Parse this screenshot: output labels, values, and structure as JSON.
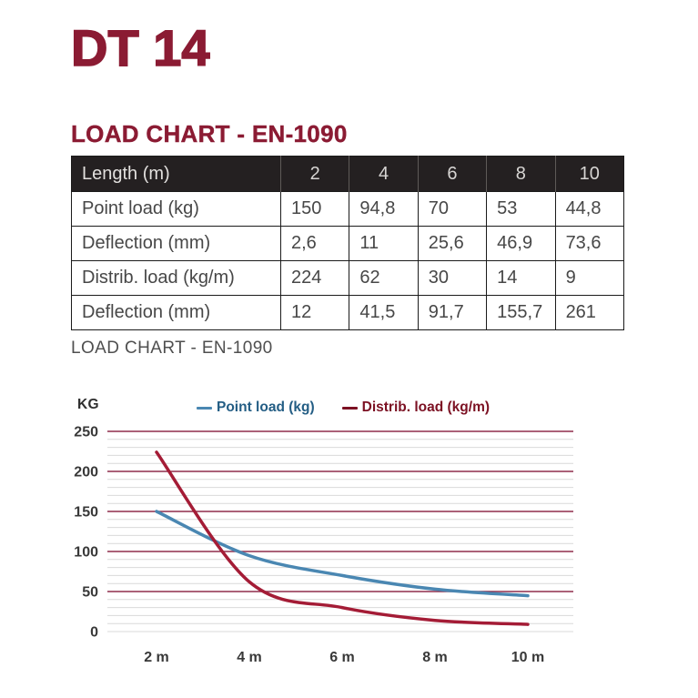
{
  "page": {
    "product_title": "DT 14",
    "section_heading": "LOAD CHART - EN-1090",
    "chart_caption": "LOAD CHART - EN-1090"
  },
  "table": {
    "header": {
      "label": "Length (m)",
      "cols": [
        "2",
        "4",
        "6",
        "8",
        "10"
      ]
    },
    "rows": [
      {
        "label": "Point load (kg)",
        "values": [
          "150",
          "94,8",
          "70",
          "53",
          "44,8"
        ]
      },
      {
        "label": "Deflection (mm)",
        "values": [
          "2,6",
          "11",
          "25,6",
          "46,9",
          "73,6"
        ]
      },
      {
        "label": "Distrib. load (kg/m)",
        "values": [
          "224",
          "62",
          "30",
          "14",
          "9"
        ]
      },
      {
        "label": "Deflection (mm)",
        "values": [
          "12",
          "41,5",
          "91,7",
          "155,7",
          "261"
        ]
      }
    ]
  },
  "chart_data": {
    "type": "line",
    "title": "",
    "ylabel": "KG",
    "xlabel": "",
    "categories": [
      "2 m",
      "4 m",
      "6 m",
      "8 m",
      "10 m"
    ],
    "x_values_m": [
      2,
      4,
      6,
      8,
      10
    ],
    "series": [
      {
        "name": "Point load (kg)",
        "values": [
          150,
          94.8,
          70,
          53,
          44.8
        ],
        "color": "#4a87b2",
        "label_color": "#235d84",
        "dash_color": "#4a87b2"
      },
      {
        "name": "Distrib. load (kg/m)",
        "values": [
          224,
          62,
          30,
          14,
          9
        ],
        "color": "#a41c36",
        "label_color": "#7c1123",
        "dash_color": "#7c1123"
      }
    ],
    "ylim": [
      0,
      250
    ],
    "y_major_step": 50,
    "y_minor_step": 10,
    "y_tick_labels": [
      "0",
      "50",
      "100",
      "150",
      "200",
      "250"
    ],
    "grid": {
      "major_color": "#8f2d4b",
      "minor_color": "#d9d9d9",
      "vertical": false
    },
    "legend_position": "top"
  },
  "colors": {
    "accent_maroon": "#8b1b33",
    "table_header_bg": "#242021",
    "table_header_text": "#d7d5d3",
    "body_text": "#474747",
    "axis_text": "#3a3a3a",
    "caption_text": "#4f4f4f"
  }
}
